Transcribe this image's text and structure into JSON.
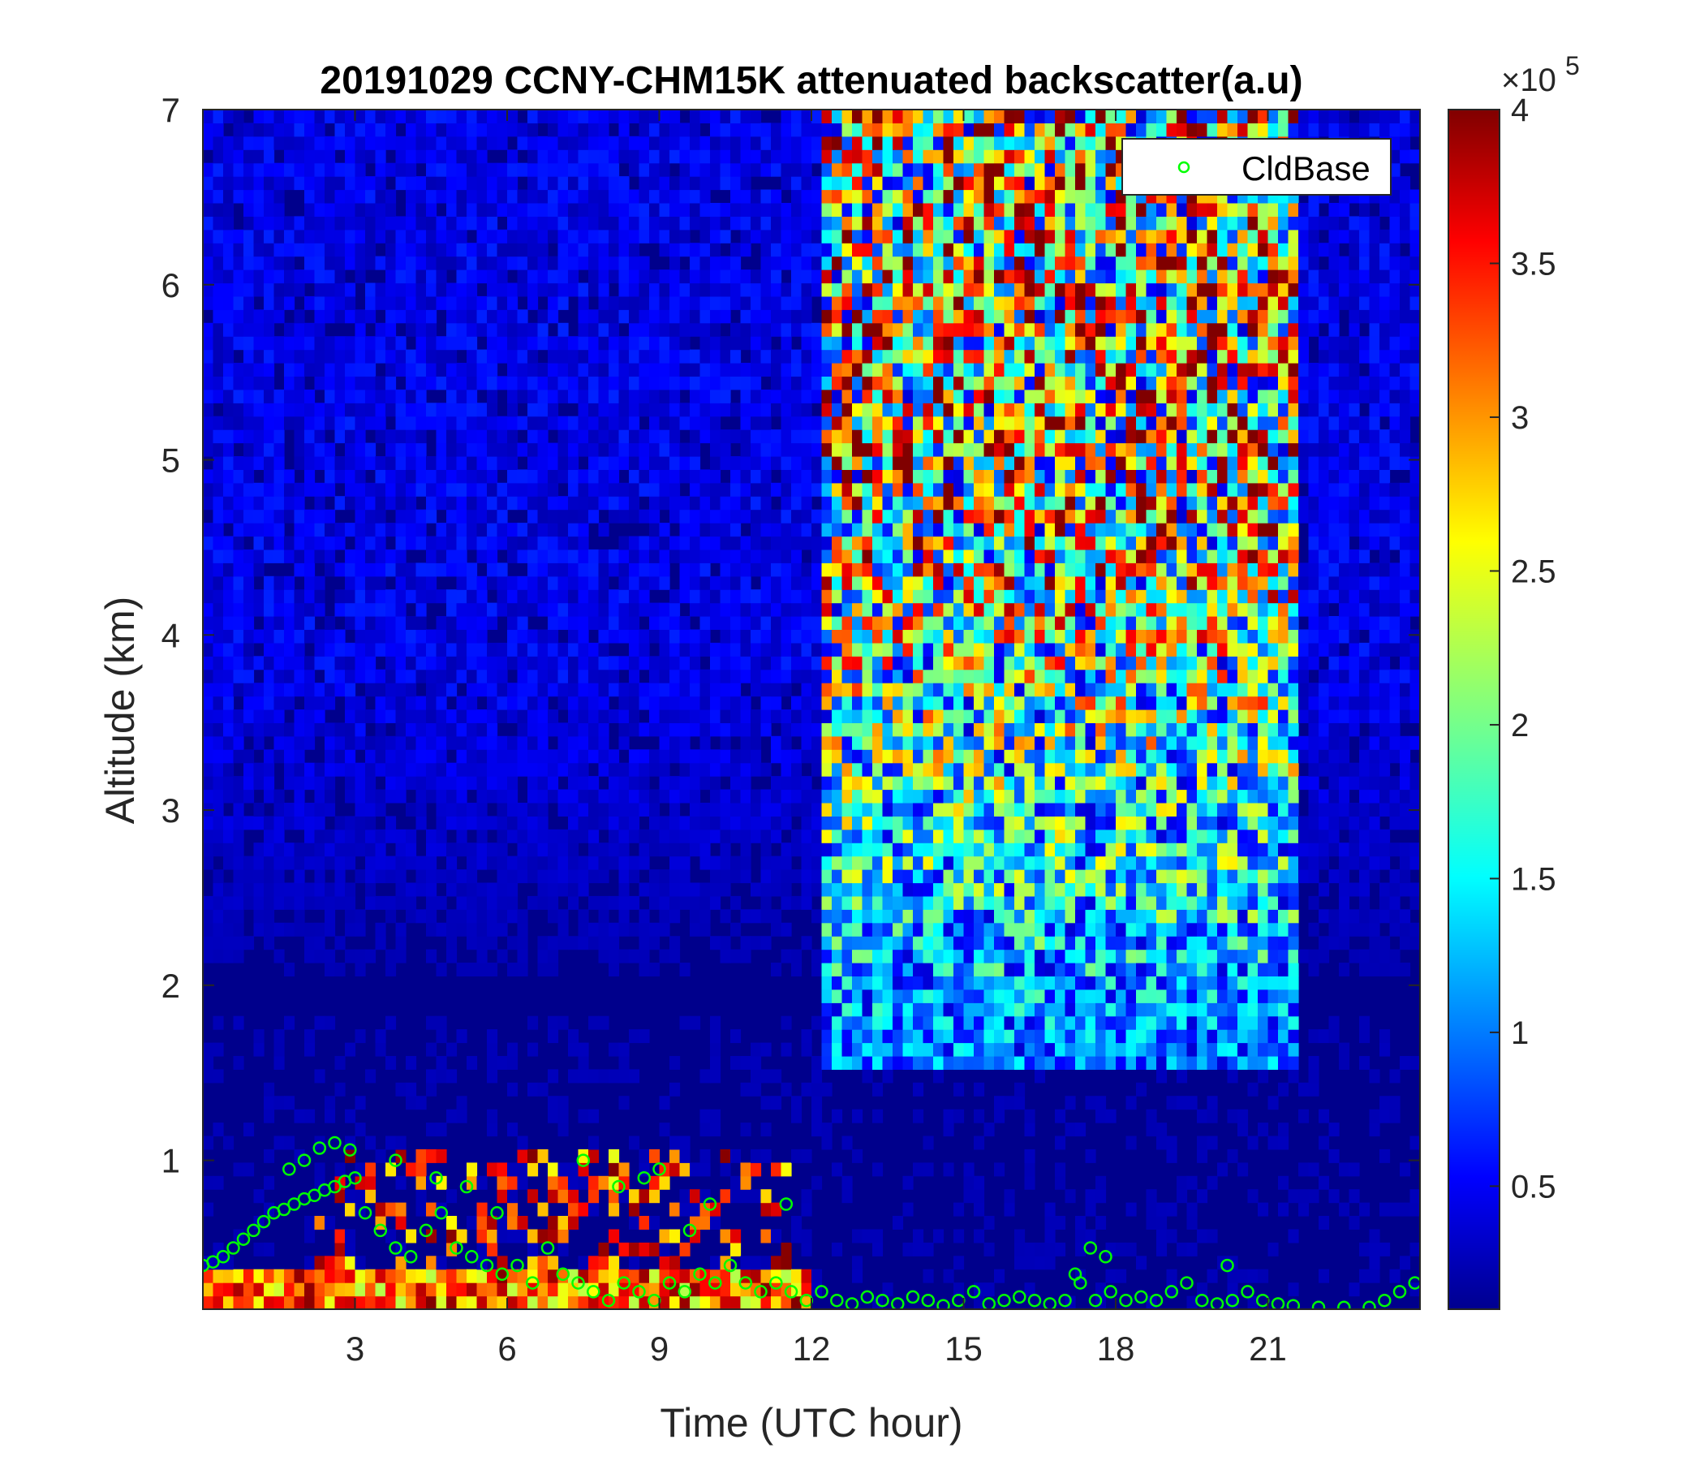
{
  "chart_data": {
    "type": "heatmap",
    "title": "20191029 CCNY-CHM15K attenuated backscatter(a.u)",
    "xlabel": "Time (UTC hour)",
    "ylabel": "Altitude (km)",
    "xlim": [
      0,
      24
    ],
    "ylim": [
      0.15,
      7
    ],
    "xticks": [
      3,
      6,
      9,
      12,
      15,
      18,
      21
    ],
    "yticks": [
      1,
      2,
      3,
      4,
      5,
      6,
      7
    ],
    "colorbar": {
      "colormap": "jet",
      "range": [
        0.1,
        4
      ],
      "ticks": [
        0.5,
        1,
        1.5,
        2,
        2.5,
        3,
        3.5,
        4
      ],
      "exponent_label": "×10",
      "exponent": "5"
    },
    "legend": {
      "position": "top-right",
      "entries": [
        "CldBase"
      ]
    },
    "series": [
      {
        "name": "CldBase",
        "marker": "circle",
        "color": "#00ff00",
        "x": [
          0.0,
          0.2,
          0.4,
          0.6,
          0.8,
          1.0,
          1.2,
          1.4,
          1.6,
          1.8,
          2.0,
          2.2,
          2.4,
          2.6,
          2.8,
          3.0,
          1.7,
          2.0,
          2.3,
          2.6,
          2.9,
          3.2,
          3.5,
          3.8,
          4.1,
          4.4,
          4.7,
          5.0,
          5.3,
          5.6,
          5.9,
          6.2,
          6.5,
          6.8,
          7.1,
          7.4,
          7.7,
          8.0,
          8.3,
          8.6,
          8.9,
          9.2,
          9.5,
          9.8,
          10.1,
          10.4,
          10.7,
          11.0,
          11.3,
          11.6,
          11.9,
          12.2,
          12.5,
          12.8,
          13.1,
          13.4,
          13.7,
          14.0,
          14.3,
          14.6,
          14.9,
          15.2,
          15.5,
          15.8,
          16.1,
          16.4,
          16.7,
          17.0,
          17.3,
          17.6,
          17.9,
          18.2,
          18.5,
          18.8,
          19.1,
          19.4,
          19.7,
          20.0,
          20.3,
          20.6,
          20.9,
          21.2,
          21.5,
          22.0,
          22.5,
          23.0,
          23.3,
          23.6,
          23.9,
          3.8,
          4.6,
          5.2,
          5.8,
          7.5,
          8.2,
          8.7,
          9.0,
          9.6,
          10.0,
          11.5,
          17.2,
          17.5,
          17.8,
          20.2
        ],
        "y": [
          0.4,
          0.42,
          0.45,
          0.5,
          0.55,
          0.6,
          0.65,
          0.7,
          0.72,
          0.75,
          0.78,
          0.8,
          0.83,
          0.85,
          0.88,
          0.9,
          0.95,
          1.0,
          1.07,
          1.1,
          1.06,
          0.7,
          0.6,
          0.5,
          0.45,
          0.6,
          0.7,
          0.5,
          0.45,
          0.4,
          0.35,
          0.4,
          0.3,
          0.5,
          0.35,
          0.3,
          0.25,
          0.2,
          0.3,
          0.25,
          0.2,
          0.3,
          0.25,
          0.35,
          0.3,
          0.4,
          0.3,
          0.25,
          0.3,
          0.25,
          0.2,
          0.25,
          0.2,
          0.18,
          0.22,
          0.2,
          0.18,
          0.22,
          0.2,
          0.17,
          0.2,
          0.25,
          0.18,
          0.2,
          0.22,
          0.2,
          0.18,
          0.2,
          0.3,
          0.2,
          0.25,
          0.2,
          0.22,
          0.2,
          0.25,
          0.3,
          0.2,
          0.18,
          0.2,
          0.25,
          0.2,
          0.18,
          0.17,
          0.16,
          0.16,
          0.16,
          0.2,
          0.25,
          0.3,
          1.0,
          0.9,
          0.85,
          0.7,
          1.0,
          0.85,
          0.9,
          0.95,
          0.6,
          0.75,
          0.75,
          0.35,
          0.5,
          0.45,
          0.4
        ]
      }
    ]
  }
}
